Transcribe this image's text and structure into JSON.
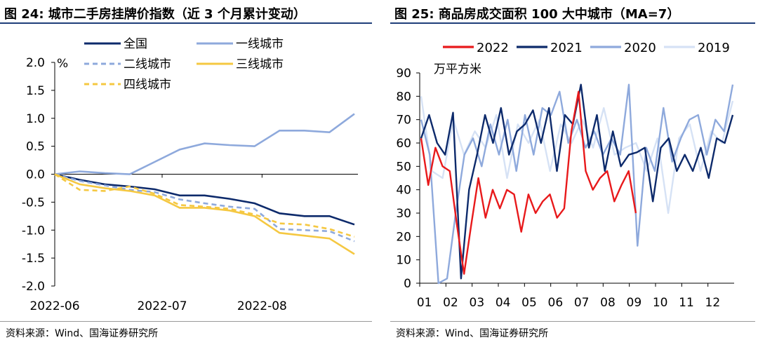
{
  "charts": [
    {
      "title": "图 24: 城市二手房挂牌价指数（近 3 个月累计变动）",
      "source": "资料来源：Wind、国海证券研究所",
      "unit": "%",
      "chart_data": {
        "type": "line",
        "ylim": [
          -2.0,
          2.0
        ],
        "yticks": [
          "2.0",
          "1.5",
          "1.0",
          "0.5",
          "0.0",
          "-0.5",
          "-1.0",
          "-1.5",
          "-2.0"
        ],
        "xtick_labels": [
          "2022-06",
          "2022-07",
          "2022-08"
        ],
        "x": [
          0,
          1,
          2,
          3,
          4,
          5,
          6,
          7,
          8,
          9,
          10,
          11,
          12
        ],
        "series": [
          {
            "name": "全国",
            "color": "#0d2a6b",
            "dash": "solid",
            "values": [
              0,
              -0.1,
              -0.18,
              -0.22,
              -0.27,
              -0.38,
              -0.38,
              -0.44,
              -0.52,
              -0.7,
              -0.75,
              -0.75,
              -0.9
            ]
          },
          {
            "name": "一线城市",
            "color": "#8ea9dc",
            "dash": "solid",
            "values": [
              0,
              0.05,
              0.02,
              0,
              0.22,
              0.44,
              0.55,
              0.52,
              0.5,
              0.78,
              0.78,
              0.75,
              1.08
            ]
          },
          {
            "name": "二线城市",
            "color": "#8ea9dc",
            "dash": "dashed",
            "values": [
              0,
              -0.12,
              -0.2,
              -0.28,
              -0.32,
              -0.45,
              -0.52,
              -0.58,
              -0.62,
              -0.98,
              -1.0,
              -1.02,
              -1.2
            ]
          },
          {
            "name": "三线城市",
            "color": "#f5c842",
            "dash": "solid",
            "values": [
              0,
              -0.18,
              -0.25,
              -0.3,
              -0.38,
              -0.6,
              -0.6,
              -0.65,
              -0.75,
              -1.05,
              -1.1,
              -1.15,
              -1.43
            ]
          },
          {
            "name": "四线城市",
            "color": "#f5c842",
            "dash": "dashed",
            "values": [
              0,
              -0.28,
              -0.3,
              -0.22,
              -0.35,
              -0.55,
              -0.58,
              -0.62,
              -0.72,
              -0.88,
              -0.9,
              -0.98,
              -1.12
            ]
          }
        ]
      }
    },
    {
      "title": "图 25: 商品房成交面积 100 大中城市（MA=7）",
      "source": "资料来源：Wind、国海证券研究所",
      "unit": "万平方米",
      "chart_data": {
        "type": "line",
        "ylim": [
          0,
          90
        ],
        "yticks": [
          "90",
          "80",
          "70",
          "60",
          "50",
          "40",
          "30",
          "20",
          "10",
          "0"
        ],
        "xtick_labels": [
          "01",
          "02",
          "03",
          "04",
          "05",
          "06",
          "07",
          "08",
          "09",
          "10",
          "11",
          "12"
        ],
        "series": [
          {
            "name": "2022",
            "color": "#e8191b",
            "values": [
              62,
              42,
              58,
              50,
              48,
              25,
              4,
              25,
              45,
              28,
              40,
              32,
              40,
              38,
              22,
              38,
              30,
              35,
              38,
              28,
              32,
              65,
              82,
              48,
              40,
              45,
              48,
              35,
              42,
              48,
              30
            ]
          },
          {
            "name": "2021",
            "color": "#0d2a6b",
            "values": [
              62,
              72,
              60,
              55,
              73,
              2,
              40,
              55,
              72,
              60,
              75,
              55,
              65,
              68,
              74,
              60,
              75,
              48,
              72,
              68,
              85,
              58,
              72,
              48,
              65,
              50,
              55,
              56,
              58,
              35,
              58,
              62,
              48,
              55,
              48,
              58,
              45,
              62,
              60,
              72
            ]
          },
          {
            "name": "2020",
            "color": "#8ea9dc",
            "values": [
              70,
              55,
              0,
              2,
              30,
              55,
              62,
              50,
              68,
              55,
              70,
              48,
              72,
              55,
              75,
              72,
              82,
              60,
              70,
              58,
              65,
              55,
              62,
              55,
              85,
              16,
              58,
              48,
              75,
              52,
              62,
              70,
              72,
              55,
              70,
              65,
              85
            ]
          },
          {
            "name": "2019",
            "color": "#d6e2f5",
            "values": [
              80,
              48,
              45,
              70,
              55,
              65,
              58,
              72,
              45,
              68,
              60,
              70,
              48,
              68,
              60,
              70,
              58,
              75,
              55,
              58,
              60,
              48,
              62,
              30,
              62,
              68,
              48,
              65,
              60,
              78
            ]
          }
        ]
      }
    }
  ]
}
